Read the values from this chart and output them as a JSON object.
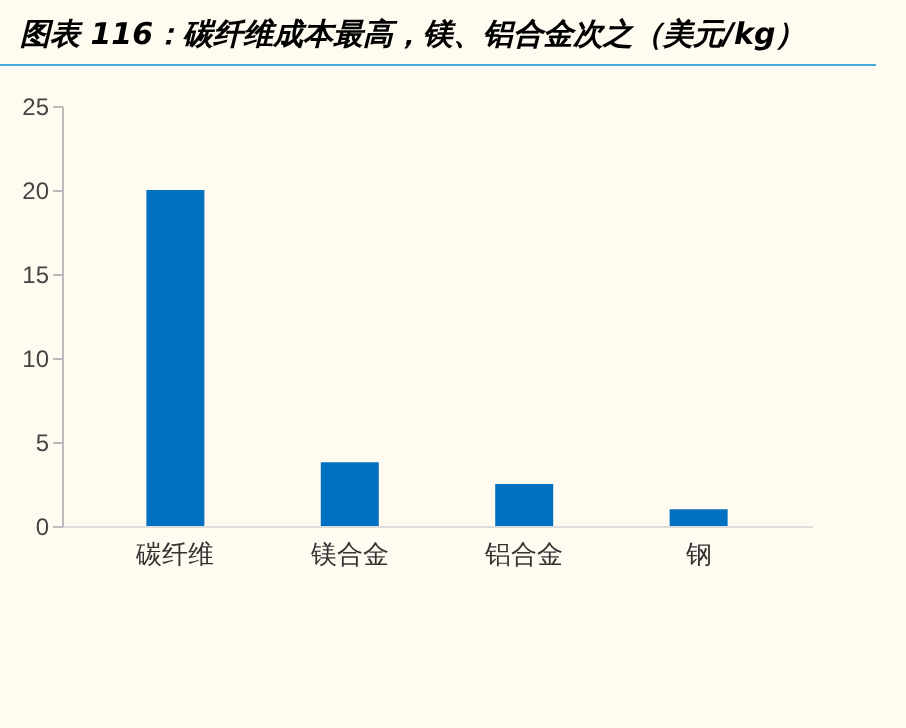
{
  "chart_data": {
    "type": "bar",
    "title": "图表 116：碳纤维成本最高，镁、铝合金次之（美元/kg）",
    "categories": [
      "碳纤维",
      "镁合金",
      "铝合金",
      "钢"
    ],
    "values": [
      20,
      3.8,
      2.5,
      1.0
    ],
    "color": "#0070c0",
    "ylim": [
      0,
      25
    ],
    "yticks": [
      0,
      5,
      10,
      15,
      20,
      25
    ],
    "grid": false
  }
}
